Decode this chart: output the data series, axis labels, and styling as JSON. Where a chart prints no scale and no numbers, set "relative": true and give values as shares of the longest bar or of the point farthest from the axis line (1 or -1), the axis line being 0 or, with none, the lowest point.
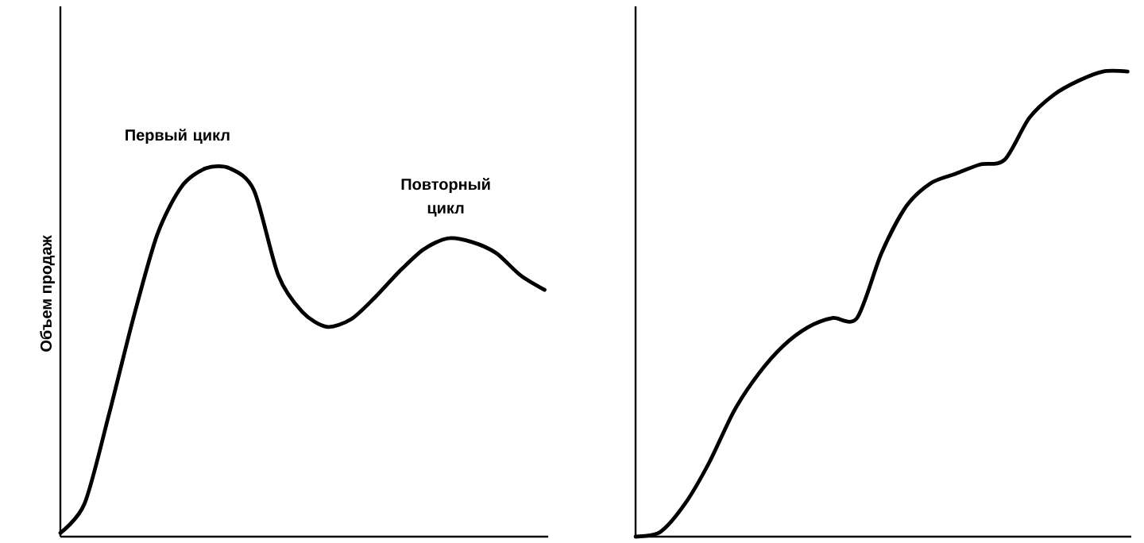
{
  "chart_data": [
    {
      "type": "line",
      "relative": true,
      "tick_labels": false,
      "color": "#000000",
      "ylabel": "Объем продаж",
      "annotations": [
        "Первый цикл",
        "Повторный цикл"
      ],
      "categories": [
        null,
        null,
        null,
        null,
        null,
        null,
        null,
        null,
        null,
        null,
        null,
        null,
        null,
        null,
        null,
        null,
        null,
        null,
        null,
        null,
        null
      ],
      "values": [
        0.01,
        0.09,
        0.33,
        0.59,
        0.82,
        0.95,
        1,
        1,
        0.94,
        0.71,
        0.61,
        0.57,
        0.59,
        0.65,
        0.72,
        0.78,
        0.81,
        0.8,
        0.77,
        0.71,
        0.67
      ]
    },
    {
      "type": "line",
      "relative": true,
      "tick_labels": false,
      "color": "#000000",
      "categories": [
        null,
        null,
        null,
        null,
        null,
        null,
        null,
        null,
        null,
        null,
        null,
        null,
        null,
        null,
        null,
        null,
        null,
        null,
        null,
        null,
        null
      ],
      "values": [
        0,
        0.01,
        0.07,
        0.16,
        0.27,
        0.35,
        0.41,
        0.45,
        0.47,
        0.47,
        0.61,
        0.71,
        0.76,
        0.78,
        0.8,
        0.81,
        0.9,
        0.95,
        0.98,
        1,
        1
      ]
    }
  ]
}
